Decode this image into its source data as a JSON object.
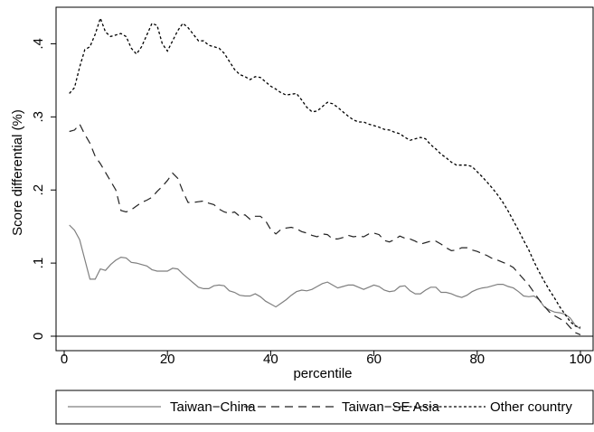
{
  "chart_data": {
    "type": "line",
    "xlabel": "percentile",
    "ylabel": "Score differential (%)",
    "xlim": [
      0,
      100
    ],
    "ylim": [
      0,
      0.45
    ],
    "xticks": [
      0,
      20,
      40,
      60,
      80,
      100
    ],
    "yticks": [
      0,
      0.1,
      0.2,
      0.3,
      0.4
    ],
    "ytick_labels": [
      "0",
      ".1",
      ".2",
      ".3",
      ".4"
    ],
    "grid": false,
    "legend_position": "bottom",
    "x": [
      1,
      2,
      3,
      4,
      5,
      6,
      7,
      8,
      9,
      10,
      11,
      12,
      13,
      14,
      15,
      16,
      17,
      18,
      19,
      20,
      21,
      22,
      23,
      24,
      25,
      26,
      27,
      28,
      29,
      30,
      31,
      32,
      33,
      34,
      35,
      36,
      37,
      38,
      39,
      40,
      41,
      42,
      43,
      44,
      45,
      46,
      47,
      48,
      49,
      50,
      51,
      52,
      53,
      54,
      55,
      56,
      57,
      58,
      59,
      60,
      61,
      62,
      63,
      64,
      65,
      66,
      67,
      68,
      69,
      70,
      71,
      72,
      73,
      74,
      75,
      76,
      77,
      78,
      79,
      80,
      81,
      82,
      83,
      84,
      85,
      86,
      87,
      88,
      89,
      90,
      91,
      92,
      93,
      94,
      95,
      96,
      97,
      98,
      99,
      100
    ],
    "series": [
      {
        "name": "Taiwan−China",
        "style": "solid",
        "color": "#7f7f7f",
        "values": [
          0.152,
          0.145,
          0.132,
          0.105,
          0.078,
          0.078,
          0.092,
          0.09,
          0.098,
          0.104,
          0.108,
          0.107,
          0.101,
          0.1,
          0.098,
          0.096,
          0.091,
          0.089,
          0.089,
          0.089,
          0.093,
          0.092,
          0.085,
          0.079,
          0.073,
          0.067,
          0.065,
          0.065,
          0.069,
          0.07,
          0.069,
          0.062,
          0.06,
          0.056,
          0.055,
          0.055,
          0.058,
          0.054,
          0.048,
          0.044,
          0.04,
          0.045,
          0.05,
          0.056,
          0.061,
          0.063,
          0.062,
          0.064,
          0.068,
          0.072,
          0.074,
          0.07,
          0.066,
          0.068,
          0.07,
          0.07,
          0.067,
          0.064,
          0.067,
          0.07,
          0.068,
          0.063,
          0.061,
          0.062,
          0.068,
          0.069,
          0.062,
          0.058,
          0.058,
          0.063,
          0.067,
          0.067,
          0.06,
          0.06,
          0.058,
          0.055,
          0.053,
          0.056,
          0.061,
          0.064,
          0.066,
          0.067,
          0.069,
          0.071,
          0.071,
          0.068,
          0.066,
          0.061,
          0.055,
          0.054,
          0.055,
          0.05,
          0.04,
          0.036,
          0.033,
          0.032,
          0.03,
          0.025,
          0.015,
          0.01
        ]
      },
      {
        "name": "Taiwan−SE Asia",
        "style": "long-dash",
        "color": "#222222",
        "values": [
          0.28,
          0.282,
          0.29,
          0.276,
          0.264,
          0.246,
          0.236,
          0.224,
          0.212,
          0.2,
          0.172,
          0.17,
          0.173,
          0.178,
          0.183,
          0.186,
          0.19,
          0.198,
          0.205,
          0.213,
          0.223,
          0.216,
          0.198,
          0.183,
          0.183,
          0.184,
          0.185,
          0.182,
          0.18,
          0.174,
          0.17,
          0.168,
          0.17,
          0.164,
          0.166,
          0.16,
          0.164,
          0.164,
          0.158,
          0.146,
          0.14,
          0.146,
          0.148,
          0.149,
          0.147,
          0.143,
          0.141,
          0.138,
          0.136,
          0.14,
          0.139,
          0.133,
          0.133,
          0.135,
          0.138,
          0.136,
          0.137,
          0.136,
          0.14,
          0.141,
          0.139,
          0.131,
          0.129,
          0.132,
          0.137,
          0.134,
          0.133,
          0.13,
          0.126,
          0.128,
          0.13,
          0.13,
          0.126,
          0.121,
          0.117,
          0.118,
          0.121,
          0.121,
          0.118,
          0.116,
          0.113,
          0.11,
          0.106,
          0.104,
          0.101,
          0.098,
          0.094,
          0.086,
          0.078,
          0.07,
          0.06,
          0.05,
          0.041,
          0.033,
          0.028,
          0.024,
          0.02,
          0.012,
          0.005,
          0.002
        ]
      },
      {
        "name": "Other country",
        "style": "short-dash",
        "color": "#000000",
        "values": [
          0.332,
          0.34,
          0.368,
          0.392,
          0.396,
          0.413,
          0.435,
          0.416,
          0.41,
          0.412,
          0.414,
          0.41,
          0.394,
          0.386,
          0.396,
          0.412,
          0.428,
          0.425,
          0.4,
          0.39,
          0.404,
          0.418,
          0.428,
          0.422,
          0.413,
          0.404,
          0.404,
          0.398,
          0.396,
          0.394,
          0.387,
          0.376,
          0.365,
          0.358,
          0.355,
          0.351,
          0.355,
          0.354,
          0.348,
          0.342,
          0.338,
          0.333,
          0.33,
          0.331,
          0.332,
          0.323,
          0.313,
          0.307,
          0.308,
          0.314,
          0.32,
          0.318,
          0.313,
          0.307,
          0.301,
          0.296,
          0.293,
          0.293,
          0.29,
          0.288,
          0.286,
          0.283,
          0.282,
          0.279,
          0.277,
          0.272,
          0.268,
          0.27,
          0.272,
          0.27,
          0.262,
          0.256,
          0.249,
          0.244,
          0.238,
          0.234,
          0.234,
          0.234,
          0.232,
          0.225,
          0.218,
          0.21,
          0.202,
          0.193,
          0.183,
          0.171,
          0.158,
          0.145,
          0.131,
          0.118,
          0.102,
          0.088,
          0.075,
          0.063,
          0.052,
          0.04,
          0.03,
          0.02,
          0.014,
          0.012
        ]
      }
    ]
  }
}
